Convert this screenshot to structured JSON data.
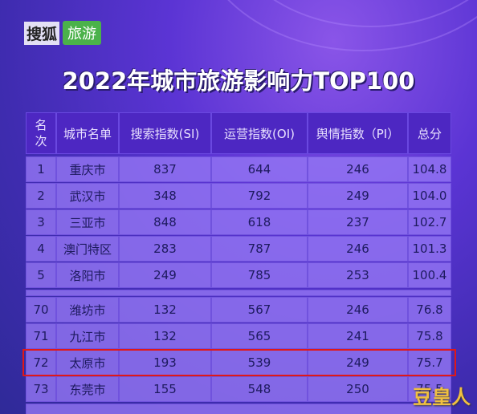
{
  "logo": {
    "brand": "搜狐",
    "channel": "旅游"
  },
  "title": "2022年城市旅游影响力TOP100",
  "table": {
    "columns": [
      "名次",
      "城市名单",
      "搜索指数(SI)",
      "运营指数(OI)",
      "舆情指数（PI）",
      "总分"
    ],
    "rows": [
      [
        "1",
        "重庆市",
        "837",
        "644",
        "246",
        "104.8"
      ],
      [
        "2",
        "武汉市",
        "348",
        "792",
        "249",
        "104.0"
      ],
      [
        "3",
        "三亚市",
        "848",
        "618",
        "237",
        "102.7"
      ],
      [
        "4",
        "澳门特区",
        "283",
        "787",
        "246",
        "101.3"
      ],
      [
        "5",
        "洛阳市",
        "249",
        "785",
        "253",
        "100.4"
      ],
      [
        "70",
        "潍坊市",
        "132",
        "567",
        "246",
        "76.8"
      ],
      [
        "71",
        "九江市",
        "132",
        "565",
        "241",
        "75.8"
      ],
      [
        "72",
        "太原市",
        "193",
        "539",
        "249",
        "75.7"
      ],
      [
        "73",
        "东莞市",
        "155",
        "548",
        "250",
        "75.5"
      ]
    ]
  },
  "watermark": "豆皇人"
}
